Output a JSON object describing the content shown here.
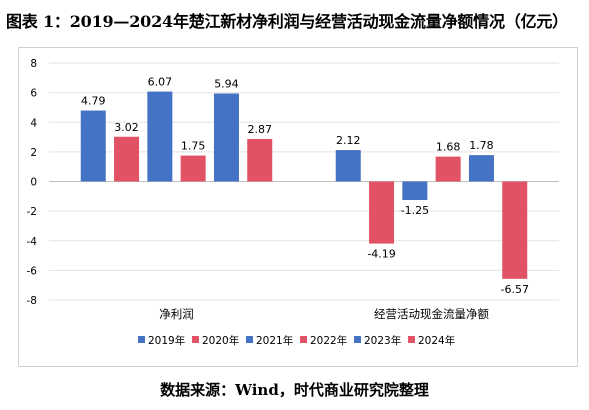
{
  "title": "图表 1：2019—2024年楚江新材净利润与经营活动现金流量净额情况（亿元）",
  "source": "数据来源：Wind，时代商业研究院整理",
  "chart_data": {
    "type": "bar",
    "categories": [
      "净利润",
      "经营活动现金流量净额"
    ],
    "series": [
      {
        "name": "2019年",
        "color": "#4472c4",
        "values": [
          4.79,
          2.12
        ]
      },
      {
        "name": "2020年",
        "color": "#e15264",
        "values": [
          3.02,
          -4.19
        ]
      },
      {
        "name": "2021年",
        "color": "#4472c4",
        "values": [
          6.07,
          -1.25
        ]
      },
      {
        "name": "2022年",
        "color": "#e15264",
        "values": [
          1.75,
          1.68
        ]
      },
      {
        "name": "2023年",
        "color": "#4472c4",
        "values": [
          5.94,
          1.78
        ]
      },
      {
        "name": "2024年",
        "color": "#e15264",
        "values": [
          2.87,
          -6.57
        ]
      }
    ],
    "ylim": [
      -8,
      8
    ],
    "yticks": [
      -8,
      -6,
      -4,
      -2,
      0,
      2,
      4,
      6,
      8
    ],
    "grid": true,
    "legend": "bottom",
    "title": "",
    "xlabel": "",
    "ylabel": ""
  }
}
